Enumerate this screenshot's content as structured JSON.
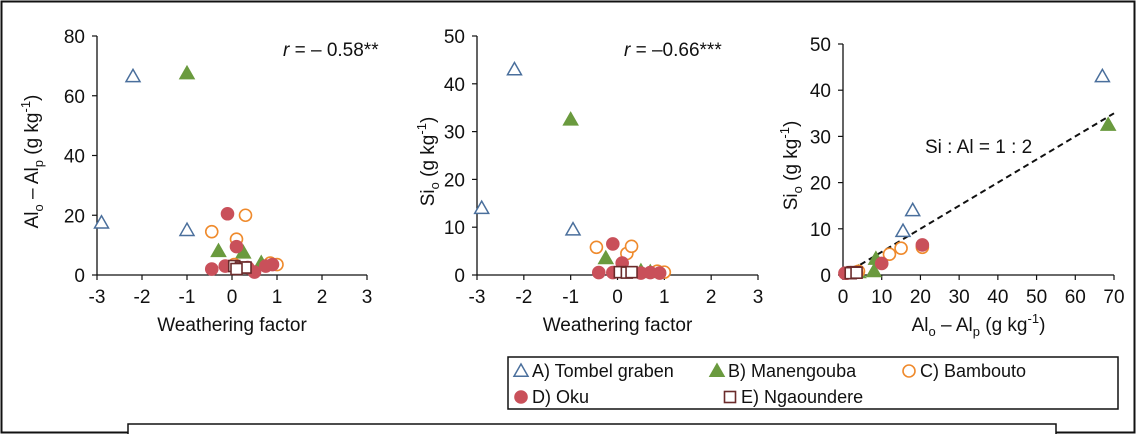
{
  "colors": {
    "tombel": "#4a6f9c",
    "manengouba": "#6a9a3e",
    "bambouto": "#ef8a2c",
    "oku": "#c9505a",
    "ngaoundere": "#6b2b2b",
    "axis": "#111111"
  },
  "legend": [
    {
      "label": "A) Tombel graben",
      "series": "tombel",
      "marker": "triangle-open"
    },
    {
      "label": "B) Manengouba",
      "series": "manengouba",
      "marker": "triangle-filled"
    },
    {
      "label": "C) Bambouto",
      "series": "bambouto",
      "marker": "circle-open"
    },
    {
      "label": "D) Oku",
      "series": "oku",
      "marker": "circle-filled"
    },
    {
      "label": "E) Ngaoundere",
      "series": "ngaoundere",
      "marker": "square-open"
    }
  ],
  "chart_data": [
    {
      "type": "scatter",
      "id": "p1",
      "xlabel": "Weathering factor",
      "ylabel_main": "Al",
      "ylabel_sub1": "o",
      "ylabel_mid": " – Al",
      "ylabel_sub2": "p",
      "ylabel_unit": " (g kg",
      "ylabel_sup": "-1",
      "ylabel_end": ")",
      "xlim": [
        -3,
        3
      ],
      "ylim": [
        0,
        80
      ],
      "xticks": [
        -3,
        -2,
        -1,
        0,
        1,
        2,
        3
      ],
      "yticks": [
        0,
        20,
        40,
        60,
        80
      ],
      "annotation_r": "r",
      "annotation_value": " = – 0.58**",
      "series": [
        {
          "key": "tombel",
          "points": [
            [
              -2.9,
              17.5
            ],
            [
              -2.2,
              66.5
            ],
            [
              -1.0,
              15.0
            ]
          ]
        },
        {
          "key": "manengouba",
          "points": [
            [
              -1.0,
              67.5
            ],
            [
              -0.3,
              8.0
            ],
            [
              0.25,
              7.5
            ],
            [
              0.65,
              4.0
            ]
          ]
        },
        {
          "key": "bambouto",
          "points": [
            [
              -0.45,
              14.5
            ],
            [
              0.1,
              12.0
            ],
            [
              0.3,
              20.0
            ],
            [
              0.85,
              4.0
            ],
            [
              1.0,
              3.5
            ],
            [
              0.05,
              3.5
            ]
          ]
        },
        {
          "key": "oku",
          "points": [
            [
              -0.1,
              20.5
            ],
            [
              0.1,
              9.5
            ],
            [
              -0.45,
              2.0
            ],
            [
              -0.15,
              3.0
            ],
            [
              0.5,
              1.0
            ],
            [
              0.75,
              3.0
            ],
            [
              0.9,
              3.5
            ],
            [
              0.35,
              2.5
            ]
          ]
        },
        {
          "key": "ngaoundere",
          "points": [
            [
              0.05,
              3.0
            ],
            [
              0.2,
              2.5
            ],
            [
              0.3,
              2.5
            ],
            [
              0.1,
              2.0
            ]
          ]
        }
      ]
    },
    {
      "type": "scatter",
      "id": "p2",
      "xlabel": "Weathering factor",
      "ylabel_main": "Si",
      "ylabel_sub1": "o",
      "ylabel_unit": " (g kg",
      "ylabel_sup": "-1",
      "ylabel_end": ")",
      "xlim": [
        -3,
        3
      ],
      "ylim": [
        0,
        50
      ],
      "xticks": [
        -3,
        -2,
        -1,
        0,
        1,
        2,
        3
      ],
      "yticks": [
        0,
        10,
        20,
        30,
        40,
        50
      ],
      "annotation_r": "r",
      "annotation_value": " = –0.66***",
      "series": [
        {
          "key": "tombel",
          "points": [
            [
              -2.9,
              14.0
            ],
            [
              -2.2,
              43.0
            ],
            [
              -0.95,
              9.5
            ]
          ]
        },
        {
          "key": "manengouba",
          "points": [
            [
              -1.0,
              32.5
            ],
            [
              -0.25,
              3.5
            ],
            [
              0.5,
              0.8
            ],
            [
              0.7,
              0.6
            ]
          ]
        },
        {
          "key": "bambouto",
          "points": [
            [
              -0.45,
              5.8
            ],
            [
              0.2,
              4.5
            ],
            [
              0.3,
              6.0
            ],
            [
              0.85,
              0.8
            ],
            [
              1.0,
              0.6
            ]
          ]
        },
        {
          "key": "oku",
          "points": [
            [
              -0.1,
              6.5
            ],
            [
              0.1,
              2.5
            ],
            [
              -0.4,
              0.5
            ],
            [
              -0.1,
              0.5
            ],
            [
              0.5,
              0.4
            ],
            [
              0.7,
              0.5
            ],
            [
              0.9,
              0.4
            ]
          ]
        },
        {
          "key": "ngaoundere",
          "points": [
            [
              0.05,
              0.6
            ],
            [
              0.2,
              0.5
            ],
            [
              0.3,
              0.6
            ]
          ]
        }
      ]
    },
    {
      "type": "scatter",
      "id": "p3",
      "xlabel_main": "Al",
      "xlabel_sub1": "o",
      "xlabel_mid": " – Al",
      "xlabel_sub2": "p",
      "xlabel_unit": " (g kg",
      "xlabel_sup": "-1",
      "xlabel_end": ")",
      "ylabel_main": "Si",
      "ylabel_sub1": "o",
      "ylabel_unit": " (g kg",
      "ylabel_sup": "-1",
      "ylabel_end": ")",
      "xlim": [
        0,
        70
      ],
      "ylim": [
        0,
        50
      ],
      "xticks": [
        0,
        10,
        20,
        30,
        40,
        50,
        60,
        70
      ],
      "yticks": [
        0,
        10,
        20,
        30,
        40,
        50
      ],
      "ratio_label": "Si : Al = 1 : 2",
      "ratio_line": {
        "x": [
          0,
          70
        ],
        "y": [
          0,
          35
        ]
      },
      "series": [
        {
          "key": "tombel",
          "points": [
            [
              67.0,
              43.0
            ],
            [
              18.0,
              14.0
            ],
            [
              15.5,
              9.5
            ]
          ]
        },
        {
          "key": "manengouba",
          "points": [
            [
              68.5,
              32.5
            ],
            [
              8.5,
              3.5
            ],
            [
              8.0,
              0.8
            ],
            [
              4.0,
              0.6
            ]
          ]
        },
        {
          "key": "bambouto",
          "points": [
            [
              15.0,
              5.8
            ],
            [
              12.0,
              4.5
            ],
            [
              20.5,
              6.0
            ],
            [
              4.0,
              0.8
            ],
            [
              3.5,
              0.6
            ]
          ]
        },
        {
          "key": "oku",
          "points": [
            [
              20.5,
              6.5
            ],
            [
              10.0,
              2.5
            ],
            [
              2.0,
              0.5
            ],
            [
              3.0,
              0.5
            ],
            [
              1.0,
              0.4
            ],
            [
              3.0,
              0.5
            ],
            [
              0.5,
              0.4
            ]
          ]
        },
        {
          "key": "ngaoundere",
          "points": [
            [
              3.0,
              0.6
            ],
            [
              2.5,
              0.5
            ],
            [
              2.5,
              0.6
            ],
            [
              2.0,
              0.4
            ],
            [
              3.5,
              0.5
            ]
          ]
        }
      ]
    }
  ]
}
